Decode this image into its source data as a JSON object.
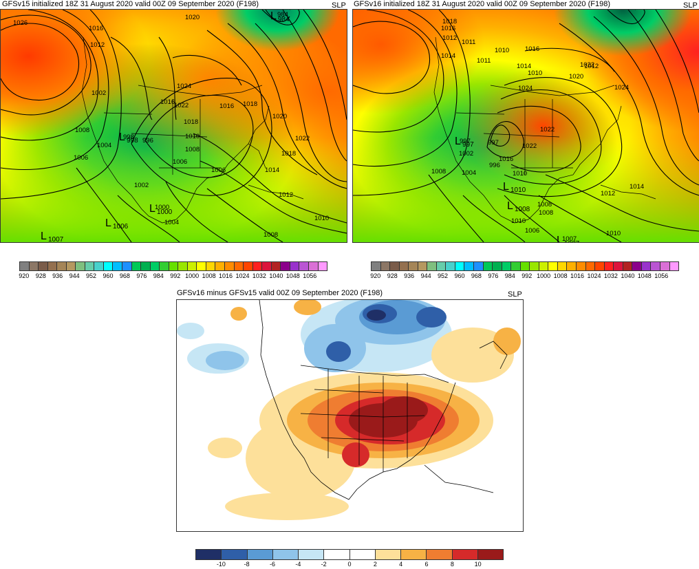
{
  "panels": {
    "top_left": {
      "title": "GFSv15 initialized 18Z 31 August 2020 valid 00Z 09 September 2020 (F198)",
      "field": "SLP",
      "contour_labels": [
        "1026",
        "1016",
        "1012",
        "1002",
        "1008",
        "1004",
        "1006",
        "998",
        "996",
        "1002",
        "1000",
        "1004",
        "1006",
        "1020",
        "1024",
        "1022",
        "1016",
        "1018",
        "1018",
        "1010",
        "1008",
        "1006",
        "1016",
        "1020",
        "1022",
        "1018",
        "1014",
        "1012",
        "1010",
        "1008",
        "984"
      ],
      "lows": [
        {
          "symbol": "L",
          "value": "1007"
        },
        {
          "symbol": "L",
          "value": "1006"
        },
        {
          "symbol": "L",
          "value": "1000"
        },
        {
          "symbol": "L",
          "value": "998"
        },
        {
          "symbol": "L",
          "value": "984"
        }
      ]
    },
    "top_right": {
      "title": "GFSv16 initialized 18Z 31 August 2020 valid 00Z 09 September 2020 (F198)",
      "field": "SLP",
      "contour_labels": [
        "1018",
        "1016",
        "1012",
        "1014",
        "1011",
        "1011",
        "1010",
        "1016",
        "1014",
        "1010",
        "1012",
        "1022",
        "1020",
        "1024",
        "1024",
        "1022",
        "1022",
        "997",
        "997",
        "1002",
        "996",
        "1004",
        "1008",
        "1008",
        "1016",
        "1010",
        "1014",
        "1012",
        "1010",
        "1006",
        "1008",
        "1010",
        "1007"
      ],
      "lows": [
        {
          "symbol": "L",
          "value": "997"
        },
        {
          "symbol": "L",
          "value": "1008"
        },
        {
          "symbol": "L",
          "value": "1007"
        },
        {
          "symbol": "L",
          "value": "1010"
        }
      ]
    },
    "bottom": {
      "title": "GFSv16 minus GFSv15 valid 00Z 09 September 2020 (F198)",
      "field": "SLP"
    }
  },
  "colorbars": {
    "slp": {
      "colors": [
        "#808080",
        "#8c7766",
        "#7a5c4a",
        "#94704f",
        "#a58557",
        "#b59860",
        "#7fbf7f",
        "#66cdaa",
        "#48d1cc",
        "#00ffff",
        "#00bfff",
        "#1e90ff",
        "#00c957",
        "#00b050",
        "#00cd66",
        "#32cd32",
        "#66e000",
        "#99e600",
        "#ccf000",
        "#ffff00",
        "#ffd700",
        "#ffb000",
        "#ff8c00",
        "#ff6a00",
        "#ff4500",
        "#ff2020",
        "#dc143c",
        "#b22222",
        "#8b008b",
        "#9932cc",
        "#ba55d3",
        "#da70d6",
        "#ff99ff"
      ],
      "ticks": [
        "920",
        "928",
        "936",
        "944",
        "952",
        "960",
        "968",
        "976",
        "984",
        "992",
        "1000",
        "1008",
        "1016",
        "1024",
        "1032",
        "1040",
        "1048",
        "1056"
      ]
    },
    "diff": {
      "colors": [
        "#1f2f66",
        "#2f5fa8",
        "#5a9bd4",
        "#8fc4ea",
        "#c6e6f5",
        "#ffffff",
        "#ffffff",
        "#fde09a",
        "#f7b245",
        "#ef7d31",
        "#d62a2a",
        "#9a1a1a"
      ],
      "ticks": [
        "-10",
        "-8",
        "-6",
        "-4",
        "-2",
        "0",
        "2",
        "4",
        "6",
        "8",
        "10"
      ]
    }
  }
}
